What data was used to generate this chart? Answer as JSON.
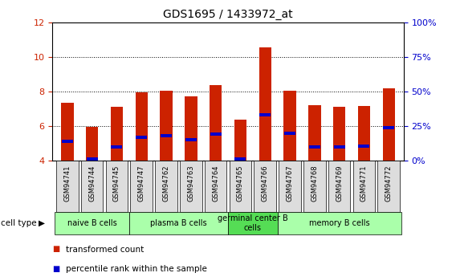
{
  "title": "GDS1695 / 1433972_at",
  "samples": [
    "GSM94741",
    "GSM94744",
    "GSM94745",
    "GSM94747",
    "GSM94762",
    "GSM94763",
    "GSM94764",
    "GSM94765",
    "GSM94766",
    "GSM94767",
    "GSM94768",
    "GSM94769",
    "GSM94771",
    "GSM94772"
  ],
  "transformed_counts": [
    7.35,
    5.95,
    7.1,
    7.95,
    8.05,
    7.7,
    8.35,
    6.35,
    10.55,
    8.05,
    7.2,
    7.1,
    7.15,
    8.2
  ],
  "percentile_ranks": [
    5.1,
    4.1,
    4.8,
    5.35,
    5.45,
    5.2,
    5.55,
    4.1,
    6.65,
    5.6,
    4.8,
    4.8,
    4.85,
    5.9
  ],
  "ymin": 4,
  "ymax": 12,
  "yticks": [
    4,
    6,
    8,
    10,
    12
  ],
  "y2ticks": [
    0,
    25,
    50,
    75,
    100
  ],
  "y2labels": [
    "0%",
    "25%",
    "50%",
    "75%",
    "100%"
  ],
  "bar_color": "#cc2200",
  "percentile_color": "#0000cc",
  "bar_width": 0.5,
  "cell_groups": [
    {
      "label": "naive B cells",
      "start": 0,
      "end": 3,
      "color": "#aaffaa"
    },
    {
      "label": "plasma B cells",
      "start": 3,
      "end": 7,
      "color": "#aaffaa"
    },
    {
      "label": "germinal center B\ncells",
      "start": 7,
      "end": 9,
      "color": "#55dd55"
    },
    {
      "label": "memory B cells",
      "start": 9,
      "end": 14,
      "color": "#aaffaa"
    }
  ],
  "cell_type_label": "cell type",
  "legend_items": [
    {
      "label": "transformed count",
      "color": "#cc2200"
    },
    {
      "label": "percentile rank within the sample",
      "color": "#0000cc"
    }
  ],
  "background_color": "#ffffff",
  "tick_label_color_left": "#cc2200",
  "tick_label_color_right": "#0000cc",
  "plot_bg": "#ffffff"
}
